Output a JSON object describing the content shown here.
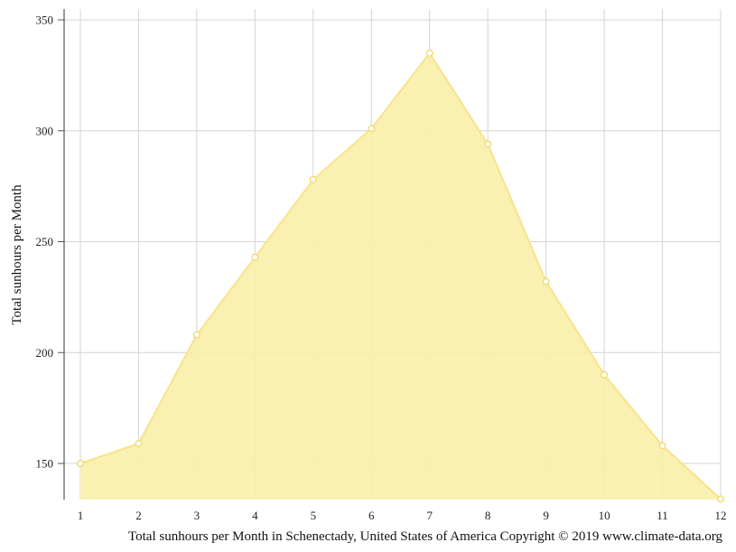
{
  "chart_data": {
    "type": "area",
    "x": [
      1,
      2,
      3,
      4,
      5,
      6,
      7,
      8,
      9,
      10,
      11,
      12
    ],
    "values": [
      150,
      159,
      208,
      243,
      278,
      301,
      335,
      294,
      232,
      190,
      158,
      134
    ],
    "xticks": [
      "1",
      "2",
      "3",
      "4",
      "5",
      "6",
      "7",
      "8",
      "9",
      "10",
      "11",
      "12"
    ],
    "yticks": [
      150,
      200,
      250,
      300,
      350
    ],
    "ylim": [
      134,
      355
    ],
    "xlabel": "",
    "ylabel": "Total sunhours per Month",
    "caption": "Total sunhours per Month in Schenectady, United States of America Copyright © 2019 www.climate-data.org",
    "grid": true,
    "colors": {
      "fill": "#faeeaa",
      "line": "#f8e38a",
      "marker_fill": "#ffffff",
      "marker_stroke": "#f2d86a",
      "grid": "#d4d4d4",
      "axis": "#555555"
    }
  }
}
